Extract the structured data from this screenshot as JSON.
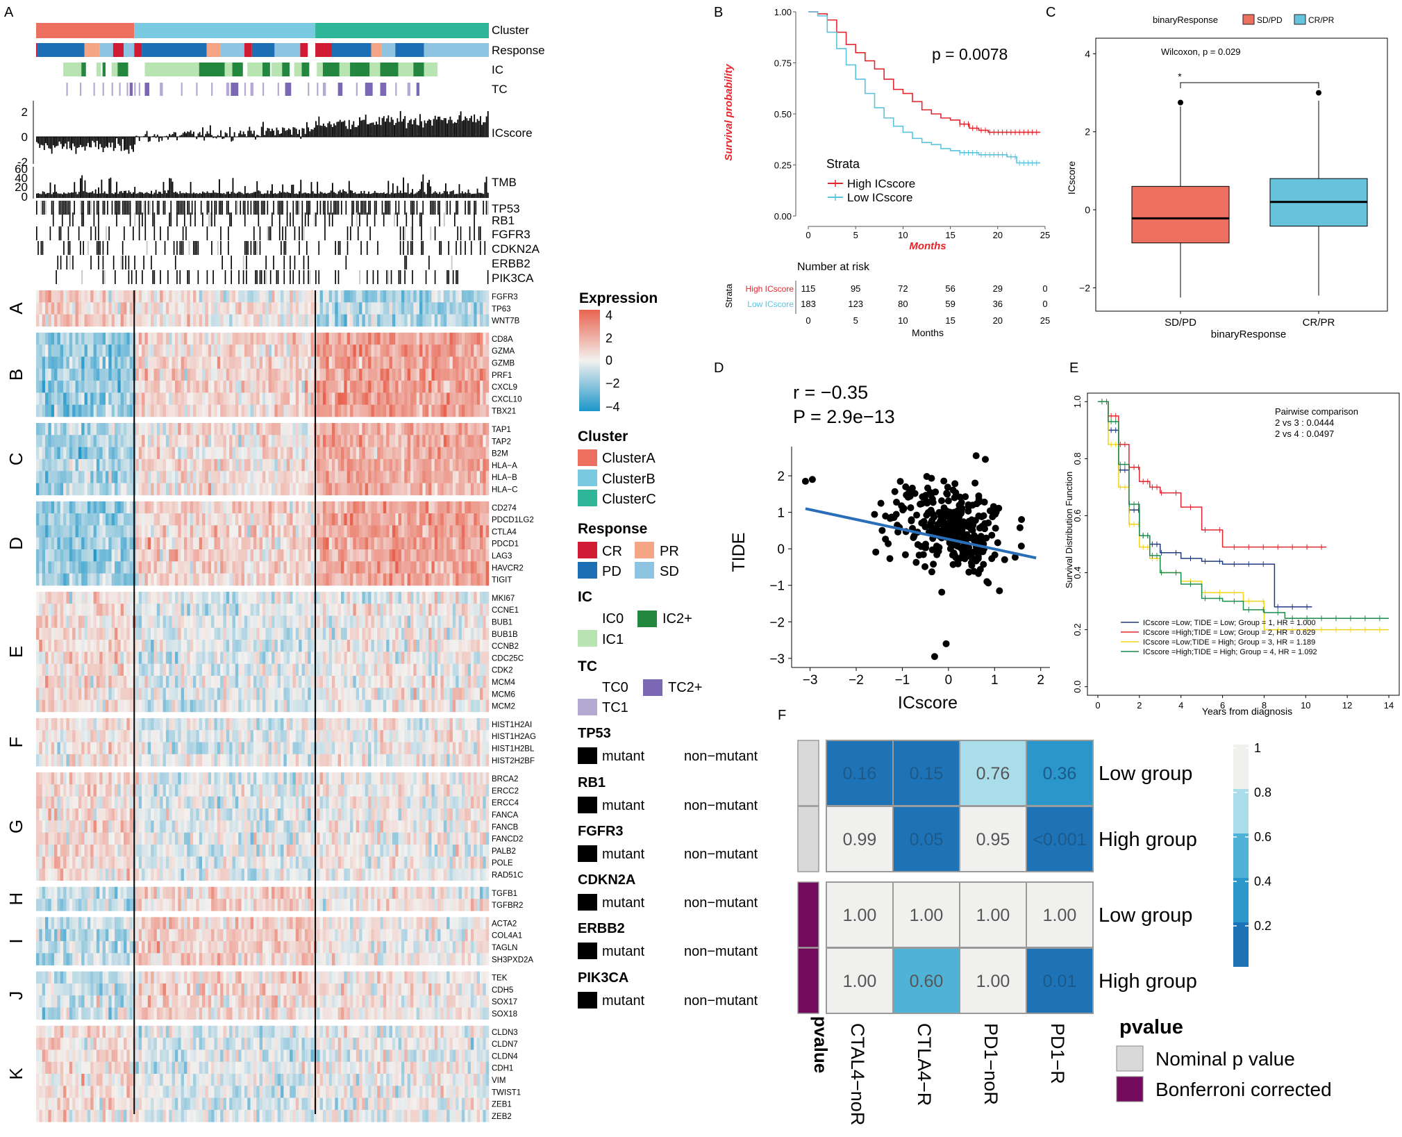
{
  "colors": {
    "clusterA": "#ec6f5f",
    "clusterB": "#79c9e0",
    "clusterC": "#2fb597",
    "CR": "#d11a34",
    "PR": "#f3a586",
    "PD": "#1c6fb4",
    "SD": "#8ec4e1",
    "IC0": "#ffffff",
    "IC1": "#b8e4b2",
    "IC2": "#23873d",
    "TC0": "#ffffff",
    "TC1": "#b3a9d3",
    "TC2": "#7b68b4",
    "high": "#e4252c",
    "low": "#5bc3de",
    "sdpd": "#ec6f5f",
    "crpr": "#66c3db",
    "line": "#2a6eb8",
    "mutant": "#000000",
    "grey": "#c8c8c8",
    "purple": "#740a5b",
    "g1": "#1f3b80",
    "g2": "#e0252c",
    "g3": "#f3d318",
    "g4": "#1e8a4b",
    "hmhigh": "#e8634f",
    "hmmid": "#f3f1ef",
    "hmlow": "#1d96c9"
  },
  "panel_labels": [
    "A",
    "B",
    "C",
    "D",
    "E",
    "F"
  ],
  "panelA": {
    "annotation_labels": [
      "Cluster",
      "Response",
      "IC",
      "TC",
      "ICscore",
      "TMB"
    ],
    "icscore_ticks": [
      "2",
      "0",
      "-2"
    ],
    "tmb_ticks": [
      "60",
      "40",
      "20",
      "0"
    ],
    "mutation_genes": [
      "TP53",
      "RB1",
      "FGFR3",
      "CDKN2A",
      "ERBB2",
      "PIK3CA"
    ],
    "gene_groups": [
      {
        "name": "A",
        "genes": [
          "FGFR3",
          "TP63",
          "WNT7B"
        ],
        "pattern": [
          0.7,
          0.2,
          -0.9
        ]
      },
      {
        "name": "B",
        "genes": [
          "CD8A",
          "GZMA",
          "GZMB",
          "PRF1",
          "CXCL9",
          "CXCL10",
          "TBX21"
        ],
        "pattern": [
          -1.3,
          0.6,
          1.7
        ]
      },
      {
        "name": "C",
        "genes": [
          "TAP1",
          "TAP2",
          "B2M",
          "HLA−A",
          "HLA−B",
          "HLA−C"
        ],
        "pattern": [
          -0.9,
          0.4,
          1.4
        ]
      },
      {
        "name": "D",
        "genes": [
          "CD274",
          "PDCD1LG2",
          "CTLA4",
          "PDCD1",
          "LAG3",
          "HAVCR2",
          "TIGIT"
        ],
        "pattern": [
          -1.2,
          0.6,
          1.6
        ]
      },
      {
        "name": "E",
        "genes": [
          "MKI67",
          "CCNE1",
          "BUB1",
          "BUB1B",
          "CCNB2",
          "CDC25C",
          "CDK2",
          "MCM4",
          "MCM6",
          "MCM2"
        ],
        "pattern": [
          0.5,
          -0.3,
          0.1
        ]
      },
      {
        "name": "F",
        "genes": [
          "HIST1H2AI",
          "HIST1H2AG",
          "HIST1H2BL",
          "HIST2H2BF"
        ],
        "pattern": [
          0.3,
          -0.2,
          0.1
        ]
      },
      {
        "name": "G",
        "genes": [
          "BRCA2",
          "ERCC2",
          "ERCC4",
          "FANCA",
          "FANCB",
          "FANCD2",
          "PALB2",
          "POLE",
          "RAD51C"
        ],
        "pattern": [
          0.5,
          -0.2,
          0.1
        ]
      },
      {
        "name": "H",
        "genes": [
          "TGFB1",
          "TGFBR2"
        ],
        "pattern": [
          -0.6,
          0.6,
          0.2
        ]
      },
      {
        "name": "I",
        "genes": [
          "ACTA2",
          "COL4A1",
          "TAGLN",
          "SH3PXD2A"
        ],
        "pattern": [
          -0.7,
          0.7,
          0.1
        ]
      },
      {
        "name": "J",
        "genes": [
          "TEK",
          "CDH5",
          "SOX17",
          "SOX18"
        ],
        "pattern": [
          -0.6,
          0.6,
          0.2
        ]
      },
      {
        "name": "K",
        "genes": [
          "CLDN3",
          "CLDN7",
          "CLDN4",
          "CDH1",
          "VIM",
          "TWIST1",
          "ZEB1",
          "ZEB2"
        ],
        "pattern": [
          0.4,
          -0.3,
          0.0
        ]
      }
    ]
  },
  "legend": {
    "expression_title": "Expression",
    "expression_ticks": [
      "4",
      "2",
      "0",
      "−2",
      "−4"
    ],
    "cluster_title": "Cluster",
    "cluster_items": [
      "ClusterA",
      "ClusterB",
      "ClusterC"
    ],
    "response_title": "Response",
    "response_items": [
      "CR",
      "PR",
      "PD",
      "SD"
    ],
    "ic_title": "IC",
    "ic_items": [
      "IC0",
      "IC2+",
      "IC1"
    ],
    "tc_title": "TC",
    "tc_items": [
      "TC0",
      "TC2+",
      "TC1"
    ],
    "mut_titles": [
      "TP53",
      "RB1",
      "FGFR3",
      "CDKN2A",
      "ERBB2",
      "PIK3CA"
    ],
    "mutant_label": "mutant",
    "nonmutant_label": "non−mutant"
  },
  "chart_data": [
    {
      "panel": "B",
      "type": "line",
      "title": "",
      "ylabel": "Survival probability",
      "xlabel": "Months",
      "ylim": [
        0,
        1
      ],
      "xlim": [
        0,
        25
      ],
      "yticks": [
        "0.00",
        "0.25",
        "0.50",
        "0.75",
        "1.00"
      ],
      "xticks": [
        "0",
        "5",
        "10",
        "15",
        "20",
        "25"
      ],
      "pvalue_text": "p = 0.0078",
      "legend_title": "Strata",
      "series": [
        {
          "name": "High ICscore",
          "x": [
            0,
            1,
            2,
            3,
            4,
            5,
            6,
            7,
            8,
            9,
            10,
            11,
            12,
            13,
            14,
            15,
            16,
            17,
            18,
            19,
            20,
            21,
            22,
            24
          ],
          "y": [
            1.0,
            0.99,
            0.96,
            0.9,
            0.84,
            0.8,
            0.76,
            0.72,
            0.67,
            0.62,
            0.6,
            0.56,
            0.52,
            0.5,
            0.48,
            0.47,
            0.45,
            0.43,
            0.42,
            0.41,
            0.41,
            0.41,
            0.41,
            0.41
          ]
        },
        {
          "name": "Low ICscore",
          "x": [
            0,
            1,
            2,
            3,
            4,
            5,
            6,
            7,
            8,
            9,
            10,
            11,
            12,
            13,
            14,
            15,
            16,
            17,
            18,
            19,
            20,
            21,
            22,
            23,
            24
          ],
          "y": [
            1.0,
            0.98,
            0.9,
            0.82,
            0.74,
            0.67,
            0.6,
            0.53,
            0.48,
            0.44,
            0.41,
            0.38,
            0.36,
            0.35,
            0.33,
            0.32,
            0.31,
            0.31,
            0.3,
            0.3,
            0.3,
            0.29,
            0.26,
            0.26,
            0.26
          ]
        }
      ],
      "risk_table": {
        "title": "Number at risk",
        "strata_label": "Strata",
        "xlabel": "Months",
        "rows": [
          {
            "name": "High ICscore",
            "values": [
              "115",
              "95",
              "72",
              "56",
              "29",
              "0"
            ]
          },
          {
            "name": "Low ICscore",
            "values": [
              "183",
              "123",
              "80",
              "59",
              "36",
              "0"
            ]
          }
        ]
      }
    },
    {
      "panel": "C",
      "type": "box",
      "legend_title": "binaryResponse",
      "legend_items": [
        "SD/PD",
        "CR/PR"
      ],
      "test_text": "Wilcoxon, p = 0.029",
      "signif": "*",
      "xlabel": "binaryResponse",
      "ylabel": "ICscore",
      "ylim": [
        -2.6,
        4.4
      ],
      "yticks": [
        {
          "v": 4,
          "t": "4"
        },
        {
          "v": 2,
          "t": "2"
        },
        {
          "v": 0,
          "t": "0"
        },
        {
          "v": -2,
          "t": "−2"
        }
      ],
      "categories": [
        "SD/PD",
        "CR/PR"
      ],
      "boxes": [
        {
          "name": "SD/PD",
          "q1": -0.85,
          "median": -0.22,
          "q3": 0.6,
          "lower": -2.25,
          "upper": 2.65,
          "outliers": [
            2.75
          ]
        },
        {
          "name": "CR/PR",
          "q1": -0.42,
          "median": 0.2,
          "q3": 0.8,
          "lower": -2.2,
          "upper": 2.8,
          "outliers": [
            3.0
          ]
        }
      ]
    },
    {
      "panel": "D",
      "type": "scatter",
      "r_text": "r = −0.35",
      "p_text": "P = 2.9e−13",
      "xlabel": "ICscore",
      "ylabel": "TIDE",
      "xlim": [
        -3.4,
        2.2
      ],
      "ylim": [
        -3.25,
        2.8
      ],
      "xticks": [
        {
          "v": -3,
          "t": "−3"
        },
        {
          "v": -2,
          "t": "−2"
        },
        {
          "v": -1,
          "t": "−1"
        },
        {
          "v": 0,
          "t": "0"
        },
        {
          "v": 1,
          "t": "1"
        },
        {
          "v": 2,
          "t": "2"
        }
      ],
      "yticks": [
        {
          "v": 2,
          "t": "2"
        },
        {
          "v": 1,
          "t": "1"
        },
        {
          "v": 0,
          "t": "0"
        },
        {
          "v": -1,
          "t": "−1"
        },
        {
          "v": -2,
          "t": "−2"
        },
        {
          "v": -3,
          "t": "−3"
        }
      ],
      "fit": {
        "x": [
          -3.1,
          1.9
        ],
        "y": [
          1.1,
          -0.25
        ]
      },
      "n_points": 300
    },
    {
      "panel": "E",
      "type": "line",
      "ylabel": "Survival Distribution Function",
      "xlabel": "Years from diagnosis",
      "xlim": [
        -0.5,
        14.5
      ],
      "ylim": [
        -0.03,
        1.03
      ],
      "xticks": [
        "0",
        "2",
        "4",
        "6",
        "8",
        "10",
        "12",
        "14"
      ],
      "yticks": [
        "0.0",
        "0.2",
        "0.4",
        "0.6",
        "0.8",
        "1.0"
      ],
      "comparison_title": "Pairwise comparison",
      "comparisons": [
        "2 vs 3 : 0.0444",
        "2 vs 4 : 0.0497"
      ],
      "series": [
        {
          "name": "ICscore =Low; TIDE = Low; Group = 1, HR = 1.000",
          "x": [
            0,
            0.5,
            1,
            1.5,
            2,
            2.5,
            3,
            4,
            5,
            6,
            7,
            8.5,
            9,
            10.2
          ],
          "y": [
            1.0,
            0.9,
            0.76,
            0.62,
            0.53,
            0.5,
            0.47,
            0.45,
            0.44,
            0.43,
            0.43,
            0.28,
            0.28,
            0.28
          ]
        },
        {
          "name": "ICscore =High;TIDE = Low; Group = 2, HR = 0.629",
          "x": [
            0,
            0.5,
            1,
            1.5,
            2,
            2.5,
            3,
            4,
            5,
            6,
            7,
            8,
            9,
            10,
            11
          ],
          "y": [
            1.0,
            0.95,
            0.85,
            0.77,
            0.72,
            0.7,
            0.68,
            0.63,
            0.55,
            0.49,
            0.49,
            0.49,
            0.49,
            0.49,
            0.49
          ]
        },
        {
          "name": "ICscore =Low;TIDE = High; Group = 3, HR = 1.189",
          "x": [
            0,
            0.5,
            1,
            1.5,
            2,
            2.5,
            3,
            4,
            5,
            6,
            7,
            8,
            9,
            11,
            14
          ],
          "y": [
            1.0,
            0.85,
            0.7,
            0.57,
            0.49,
            0.45,
            0.4,
            0.37,
            0.33,
            0.33,
            0.3,
            0.2,
            0.2,
            0.2,
            0.2
          ]
        },
        {
          "name": "ICscore =High;TIDE = High; Group = 4, HR = 1.092",
          "x": [
            0,
            0.5,
            1,
            1.5,
            2,
            2.5,
            3,
            4,
            5,
            6,
            7,
            8,
            9,
            11,
            14
          ],
          "y": [
            1.0,
            0.93,
            0.78,
            0.64,
            0.53,
            0.46,
            0.4,
            0.36,
            0.31,
            0.3,
            0.27,
            0.26,
            0.24,
            0.24,
            0.24
          ]
        }
      ]
    },
    {
      "panel": "F",
      "type": "heatmap",
      "columns": [
        "CTAL4−noR",
        "CTLA4−R",
        "PD1−noR",
        "PD1−R"
      ],
      "rows": [
        "Low group",
        "High group",
        "Low group",
        "High group"
      ],
      "row_annotation": [
        "Nominal p value",
        "Nominal p value",
        "Bonferroni corrected",
        "Bonferroni corrected"
      ],
      "annotation_title": "pvalue",
      "values": [
        [
          0.16,
          0.15,
          0.76,
          0.36
        ],
        [
          0.99,
          0.05,
          0.95,
          0.001
        ],
        [
          1.0,
          1.0,
          1.0,
          1.0
        ],
        [
          1.0,
          0.6,
          1.0,
          0.01
        ]
      ],
      "cell_text": [
        [
          "0.16",
          "0.15",
          "0.76",
          "0.36"
        ],
        [
          "0.99",
          "0.05",
          "0.95",
          "<0.001"
        ],
        [
          "1.00",
          "1.00",
          "1.00",
          "1.00"
        ],
        [
          "1.00",
          "0.60",
          "1.00",
          "0.01"
        ]
      ],
      "colorbar_ticks": [
        "1",
        "0.8",
        "0.6",
        "0.4",
        "0.2"
      ],
      "legend_title": "pvalue",
      "legend_items": [
        "Nominal p value",
        "Bonferroni corrected"
      ]
    }
  ]
}
